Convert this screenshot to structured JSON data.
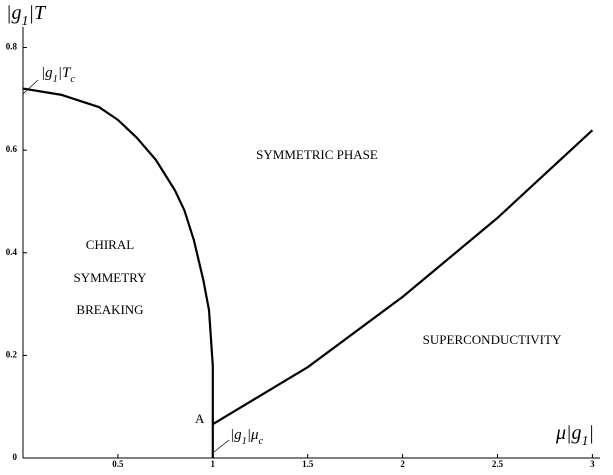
{
  "chart_data": {
    "type": "line",
    "xlim": [
      0,
      3.04
    ],
    "ylim": [
      0,
      0.84
    ],
    "xticks": [
      0.5,
      1,
      1.5,
      2,
      2.5,
      3
    ],
    "yticks": [
      0,
      0.2,
      0.4,
      0.6,
      0.8
    ],
    "xlabel": [
      "μ|g",
      "1",
      "|"
    ],
    "ylabel": [
      "|g",
      "1",
      "|T"
    ],
    "series": [
      {
        "color": "#000000",
        "x": [
          0,
          0.2,
          0.4,
          0.5,
          0.6,
          0.7,
          0.8,
          0.85,
          0.9,
          0.95,
          0.98,
          1.0,
          1.0
        ],
        "values": [
          0.72,
          0.708,
          0.684,
          0.659,
          0.624,
          0.581,
          0.522,
          0.483,
          0.425,
          0.347,
          0.288,
          0.18,
          0
        ]
      },
      {
        "color": "#000000",
        "x": [
          1.0,
          1.5,
          2.0,
          2.5,
          3.0
        ],
        "values": [
          0.066,
          0.177,
          0.314,
          0.468,
          0.639
        ]
      }
    ],
    "annotations": {
      "tc": [
        "|g",
        "1",
        "|T",
        "c"
      ],
      "muc": [
        "|g",
        "1",
        "|μ",
        "c"
      ],
      "point": "A",
      "chiral": [
        "CHIRAL",
        "SYMMETRY",
        "BREAKING"
      ],
      "symmetric": "SYMMETRIC PHASE",
      "super": "SUPERCONDUCTIVITY"
    }
  }
}
